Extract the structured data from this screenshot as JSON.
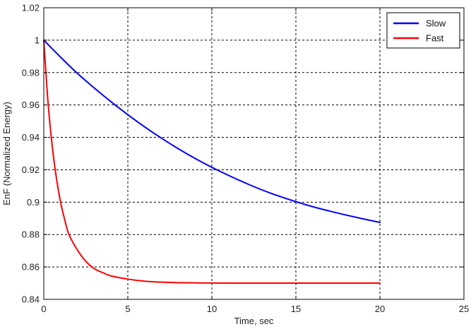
{
  "chart_data": {
    "type": "line",
    "title": "",
    "xlabel": "Time, sec",
    "ylabel": "EnF (Normalized Energy)",
    "xlim": [
      0,
      25
    ],
    "ylim": [
      0.84,
      1.02
    ],
    "x_ticks": [
      0,
      5,
      10,
      15,
      20,
      25
    ],
    "y_ticks": [
      0.84,
      0.86,
      0.88,
      0.9,
      0.92,
      0.94,
      0.96,
      0.98,
      1,
      1.02
    ],
    "x_tick_labels": [
      "0",
      "5",
      "10",
      "15",
      "20",
      "25"
    ],
    "y_tick_labels": [
      "0.84",
      "0.86",
      "0.88",
      "0.9",
      "0.92",
      "0.94",
      "0.96",
      "0.98",
      "1",
      "1.02"
    ],
    "grid": true,
    "grid_style": "dashed",
    "legend_position": "top-right",
    "series": [
      {
        "name": "Slow",
        "color": "#0000ff",
        "x": [
          0,
          1,
          2,
          3,
          4,
          5,
          6,
          7,
          8,
          9,
          10,
          11,
          12,
          13,
          14,
          15,
          16,
          17,
          18,
          19,
          20
        ],
        "y": [
          1.0,
          0.9895,
          0.9795,
          0.9705,
          0.962,
          0.954,
          0.9465,
          0.9395,
          0.933,
          0.927,
          0.9215,
          0.9165,
          0.9118,
          0.9075,
          0.9037,
          0.9003,
          0.8972,
          0.8945,
          0.892,
          0.8897,
          0.8875
        ]
      },
      {
        "name": "Fast",
        "color": "#ff0000",
        "x": [
          0,
          0.25,
          0.5,
          0.75,
          1,
          1.25,
          1.5,
          2,
          2.5,
          3,
          3.5,
          4,
          5,
          6,
          7,
          8,
          10,
          12,
          14,
          16,
          18,
          20
        ],
        "y": [
          1.0,
          0.962,
          0.935,
          0.915,
          0.9,
          0.889,
          0.88,
          0.8705,
          0.8635,
          0.859,
          0.8565,
          0.8545,
          0.8525,
          0.8512,
          0.8506,
          0.8503,
          0.8501,
          0.85,
          0.85,
          0.85,
          0.85,
          0.85
        ]
      }
    ]
  }
}
